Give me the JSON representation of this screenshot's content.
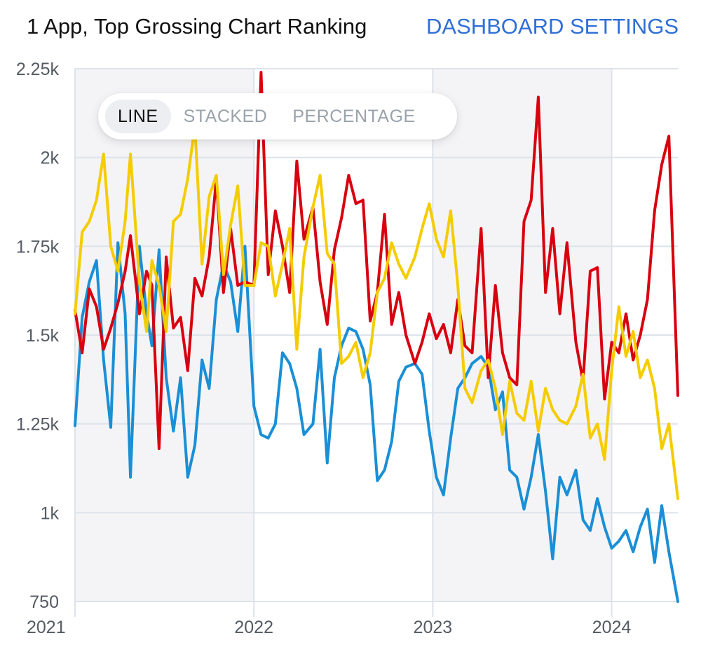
{
  "header": {
    "title": "1 App, Top Grossing Chart Ranking",
    "settings_label": "DASHBOARD SETTINGS"
  },
  "view_toggle": {
    "options": [
      "LINE",
      "STACKED",
      "PERCENTAGE"
    ],
    "selected": "LINE"
  },
  "colors": {
    "blue": "#1a8fd6",
    "red": "#d8000f",
    "yellow": "#f5cc00",
    "accent": "#2f6fd6",
    "band": "#f4f4f6",
    "grid": "#dde3ea"
  },
  "chart_data": {
    "type": "line",
    "title": "1 App, Top Grossing Chart Ranking",
    "y_reversed": true,
    "ylim": [
      2250,
      750
    ],
    "yticks": [
      750,
      1000,
      1250,
      1500,
      1750,
      2000,
      2250
    ],
    "ytick_labels": [
      "750",
      "1k",
      "1.25k",
      "1.5k",
      "1.75k",
      "2k",
      "2.25k"
    ],
    "xlim": [
      2021.0,
      2024.37
    ],
    "xticks": [
      2021,
      2022,
      2023,
      2024
    ],
    "xtick_labels": [
      "2021",
      "2022",
      "2023",
      "2024"
    ],
    "grid": true,
    "series": [
      {
        "color": "blue",
        "x": [
          2021.0,
          2021.04,
          2021.08,
          2021.12,
          2021.16,
          2021.2,
          2021.24,
          2021.28,
          2021.31,
          2021.36,
          2021.4,
          2021.43,
          2021.47,
          2021.51,
          2021.55,
          2021.59,
          2021.63,
          2021.67,
          2021.71,
          2021.75,
          2021.79,
          2021.83,
          2021.87,
          2021.91,
          2021.95,
          2022.0,
          2022.04,
          2022.08,
          2022.12,
          2022.16,
          2022.2,
          2022.24,
          2022.28,
          2022.33,
          2022.37,
          2022.41,
          2022.45,
          2022.49,
          2022.53,
          2022.57,
          2022.61,
          2022.65,
          2022.69,
          2022.73,
          2022.77,
          2022.81,
          2022.85,
          2022.9,
          2022.94,
          2022.98,
          2023.02,
          2023.06,
          2023.1,
          2023.14,
          2023.18,
          2023.22,
          2023.27,
          2023.31,
          2023.35,
          2023.39,
          2023.43,
          2023.47,
          2023.51,
          2023.55,
          2023.59,
          2023.63,
          2023.67,
          2023.71,
          2023.75,
          2023.8,
          2023.84,
          2023.88,
          2023.92,
          2023.96,
          2024.0,
          2024.04,
          2024.08,
          2024.12,
          2024.16,
          2024.2,
          2024.24,
          2024.28,
          2024.32,
          2024.37
        ],
        "y": [
          1245,
          1550,
          1650,
          1710,
          1430,
          1240,
          1760,
          1560,
          1100,
          1750,
          1560,
          1470,
          1740,
          1380,
          1230,
          1380,
          1100,
          1190,
          1430,
          1350,
          1600,
          1700,
          1650,
          1510,
          1750,
          1300,
          1220,
          1210,
          1250,
          1450,
          1420,
          1350,
          1220,
          1250,
          1460,
          1140,
          1380,
          1470,
          1520,
          1510,
          1460,
          1360,
          1090,
          1120,
          1200,
          1370,
          1410,
          1420,
          1390,
          1230,
          1100,
          1050,
          1210,
          1350,
          1380,
          1420,
          1440,
          1410,
          1290,
          1340,
          1120,
          1100,
          1010,
          1100,
          1220,
          1060,
          870,
          1100,
          1050,
          1120,
          980,
          950,
          1040,
          960,
          900,
          920,
          950,
          890,
          960,
          1010,
          860,
          1020,
          890,
          750
        ]
      },
      {
        "color": "red",
        "x": [
          2021.0,
          2021.04,
          2021.08,
          2021.12,
          2021.16,
          2021.2,
          2021.24,
          2021.28,
          2021.31,
          2021.36,
          2021.4,
          2021.43,
          2021.47,
          2021.51,
          2021.55,
          2021.59,
          2021.63,
          2021.67,
          2021.71,
          2021.75,
          2021.79,
          2021.83,
          2021.87,
          2021.91,
          2021.95,
          2022.0,
          2022.04,
          2022.08,
          2022.12,
          2022.16,
          2022.2,
          2022.24,
          2022.28,
          2022.33,
          2022.37,
          2022.41,
          2022.45,
          2022.49,
          2022.53,
          2022.57,
          2022.61,
          2022.65,
          2022.69,
          2022.73,
          2022.77,
          2022.81,
          2022.85,
          2022.9,
          2022.94,
          2022.98,
          2023.02,
          2023.06,
          2023.1,
          2023.14,
          2023.18,
          2023.22,
          2023.27,
          2023.31,
          2023.35,
          2023.39,
          2023.43,
          2023.47,
          2023.51,
          2023.55,
          2023.59,
          2023.63,
          2023.67,
          2023.71,
          2023.75,
          2023.8,
          2023.84,
          2023.88,
          2023.92,
          2023.96,
          2024.0,
          2024.04,
          2024.08,
          2024.12,
          2024.16,
          2024.2,
          2024.24,
          2024.28,
          2024.32,
          2024.37
        ],
        "y": [
          1570,
          1450,
          1630,
          1580,
          1460,
          1520,
          1590,
          1680,
          1780,
          1560,
          1680,
          1640,
          1180,
          1720,
          1520,
          1550,
          1400,
          1660,
          1610,
          1720,
          1940,
          1620,
          1800,
          1640,
          1650,
          1640,
          2240,
          1670,
          1850,
          1750,
          1620,
          1990,
          1770,
          1860,
          1650,
          1530,
          1740,
          1830,
          1950,
          1870,
          1880,
          1540,
          1620,
          1840,
          1530,
          1620,
          1500,
          1420,
          1480,
          1560,
          1490,
          1530,
          1450,
          1600,
          1470,
          1450,
          1800,
          1380,
          1640,
          1450,
          1380,
          1360,
          1820,
          1880,
          2170,
          1620,
          1800,
          1560,
          1760,
          1480,
          1370,
          1680,
          1690,
          1320,
          1480,
          1450,
          1560,
          1430,
          1500,
          1600,
          1850,
          1980,
          2060,
          1330
        ]
      },
      {
        "color": "yellow",
        "x": [
          2021.0,
          2021.04,
          2021.08,
          2021.12,
          2021.16,
          2021.2,
          2021.24,
          2021.28,
          2021.31,
          2021.36,
          2021.4,
          2021.43,
          2021.47,
          2021.51,
          2021.55,
          2021.59,
          2021.63,
          2021.67,
          2021.71,
          2021.75,
          2021.79,
          2021.83,
          2021.87,
          2021.91,
          2021.95,
          2022.0,
          2022.04,
          2022.08,
          2022.12,
          2022.16,
          2022.2,
          2022.24,
          2022.28,
          2022.33,
          2022.37,
          2022.41,
          2022.45,
          2022.49,
          2022.53,
          2022.57,
          2022.61,
          2022.65,
          2022.69,
          2022.73,
          2022.77,
          2022.81,
          2022.85,
          2022.9,
          2022.94,
          2022.98,
          2023.02,
          2023.06,
          2023.1,
          2023.14,
          2023.18,
          2023.22,
          2023.27,
          2023.31,
          2023.35,
          2023.39,
          2023.43,
          2023.47,
          2023.51,
          2023.55,
          2023.59,
          2023.63,
          2023.67,
          2023.71,
          2023.75,
          2023.8,
          2023.84,
          2023.88,
          2023.92,
          2023.96,
          2024.0,
          2024.04,
          2024.08,
          2024.12,
          2024.16,
          2024.2,
          2024.24,
          2024.28,
          2024.32,
          2024.37
        ],
        "y": [
          1560,
          1790,
          1820,
          1880,
          2010,
          1750,
          1680,
          1820,
          2010,
          1650,
          1510,
          1710,
          1640,
          1510,
          1820,
          1840,
          1940,
          2090,
          1700,
          1890,
          1950,
          1670,
          1810,
          1920,
          1640,
          1640,
          1760,
          1750,
          1610,
          1700,
          1800,
          1460,
          1720,
          1860,
          1950,
          1730,
          1700,
          1420,
          1440,
          1480,
          1380,
          1450,
          1620,
          1660,
          1760,
          1700,
          1660,
          1720,
          1800,
          1870,
          1770,
          1720,
          1850,
          1640,
          1350,
          1310,
          1400,
          1430,
          1350,
          1220,
          1370,
          1280,
          1260,
          1370,
          1230,
          1350,
          1290,
          1260,
          1250,
          1300,
          1390,
          1210,
          1250,
          1150,
          1400,
          1580,
          1440,
          1510,
          1380,
          1430,
          1350,
          1180,
          1250,
          1040
        ]
      }
    ]
  }
}
